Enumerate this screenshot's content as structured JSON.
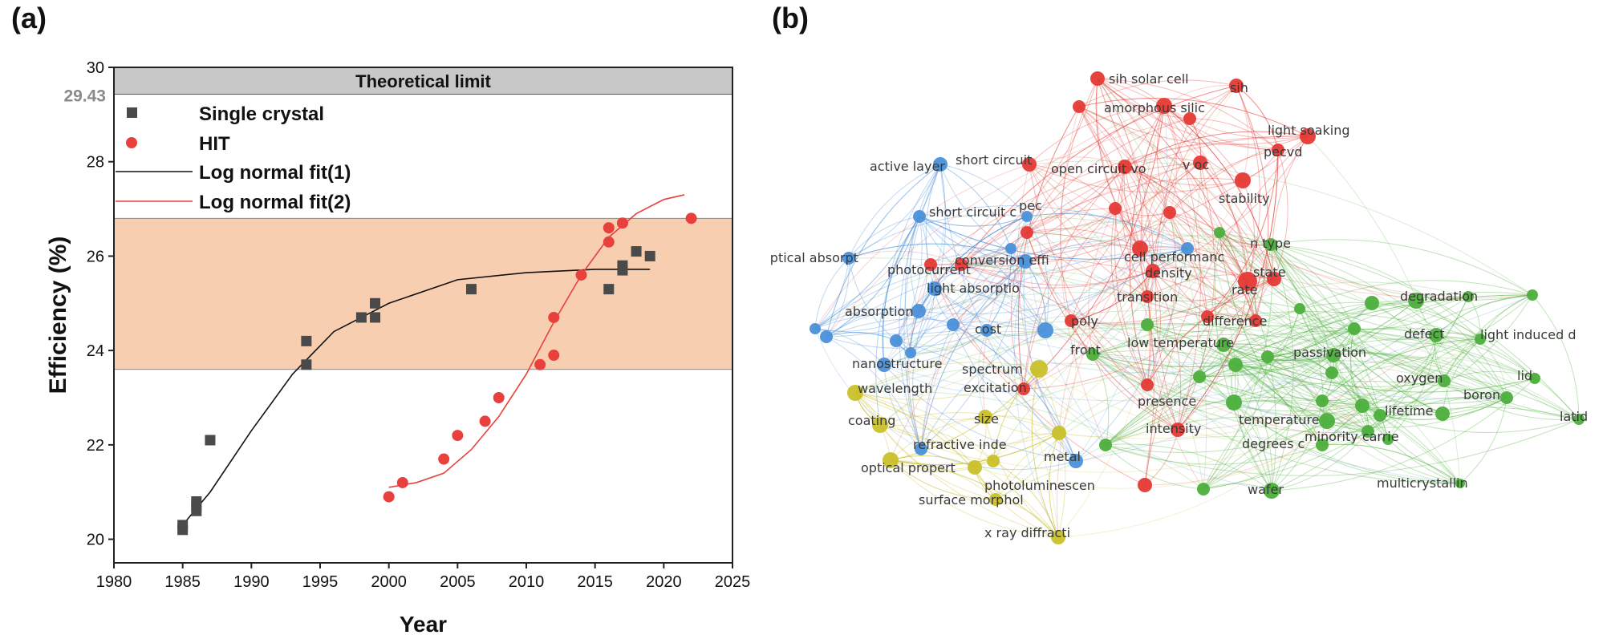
{
  "panels": {
    "a": "(a)",
    "b": "(b)"
  },
  "chart_data": [
    {
      "type": "scatter",
      "xlabel": "Year",
      "ylabel": "Efficiency (%)",
      "xlim": [
        1980,
        2025
      ],
      "ylim": [
        19.5,
        30
      ],
      "x_ticks": [
        1980,
        1985,
        1990,
        1995,
        2000,
        2005,
        2010,
        2015,
        2020,
        2025
      ],
      "y_ticks": [
        20,
        22,
        24,
        26,
        28,
        30
      ],
      "extra_tick": "29.43",
      "bands": [
        {
          "label": "Theoretical limit",
          "from": 29.43,
          "to": 30,
          "color": "#c8c8c8"
        },
        {
          "label": "",
          "from": 23.6,
          "to": 26.8,
          "color": "#f7cfb0"
        }
      ],
      "legend": {
        "placement": "top-left",
        "entries": [
          "Single crystal",
          "HIT",
          "Log normal fit(1)",
          "Log normal fit(2)"
        ]
      },
      "series": [
        {
          "name": "Single crystal",
          "marker": "square",
          "color": "#4a4a4a",
          "points": [
            [
              1985,
              20.2
            ],
            [
              1985,
              20.3
            ],
            [
              1986,
              20.6
            ],
            [
              1986,
              20.7
            ],
            [
              1986,
              20.8
            ],
            [
              1987,
              22.1
            ],
            [
              1994,
              23.7
            ],
            [
              1994,
              24.2
            ],
            [
              1998,
              24.7
            ],
            [
              1999,
              24.7
            ],
            [
              1999,
              25.0
            ],
            [
              2006,
              25.3
            ],
            [
              2016,
              25.3
            ],
            [
              2017,
              25.7
            ],
            [
              2017,
              25.8
            ],
            [
              2018,
              26.1
            ],
            [
              2019,
              26.0
            ]
          ]
        },
        {
          "name": "HIT",
          "marker": "circle",
          "color": "#e8403c",
          "points": [
            [
              2000,
              20.9
            ],
            [
              2001,
              21.2
            ],
            [
              2004,
              21.7
            ],
            [
              2005,
              22.2
            ],
            [
              2007,
              22.5
            ],
            [
              2008,
              23.0
            ],
            [
              2011,
              23.7
            ],
            [
              2012,
              23.9
            ],
            [
              2012,
              24.7
            ],
            [
              2014,
              25.6
            ],
            [
              2016,
              26.3
            ],
            [
              2016,
              26.6
            ],
            [
              2017,
              26.7
            ],
            [
              2022,
              26.8
            ]
          ]
        },
        {
          "name": "Log normal fit(1)",
          "type": "line",
          "color": "#111111",
          "points": [
            [
              1985,
              20.3
            ],
            [
              1987,
              21.0
            ],
            [
              1990,
              22.3
            ],
            [
              1993,
              23.5
            ],
            [
              1996,
              24.4
            ],
            [
              2000,
              25.0
            ],
            [
              2005,
              25.5
            ],
            [
              2010,
              25.65
            ],
            [
              2015,
              25.72
            ],
            [
              2019,
              25.72
            ]
          ]
        },
        {
          "name": "Log normal fit(2)",
          "type": "line",
          "color": "#e8403c",
          "points": [
            [
              2000,
              21.1
            ],
            [
              2002,
              21.2
            ],
            [
              2004,
              21.4
            ],
            [
              2006,
              21.9
            ],
            [
              2008,
              22.6
            ],
            [
              2010,
              23.5
            ],
            [
              2012,
              24.6
            ],
            [
              2014,
              25.6
            ],
            [
              2016,
              26.4
            ],
            [
              2018,
              26.9
            ],
            [
              2020,
              27.2
            ],
            [
              2021.5,
              27.3
            ]
          ]
        }
      ]
    },
    {
      "type": "network",
      "clusters": {
        "red": "#e53935",
        "green": "#4caf3c",
        "blue": "#4a90d9",
        "yellow": "#c9c02a"
      },
      "labels": [
        "sih solar cell",
        "sih",
        "amorphous silic",
        "light soaking",
        "pecvd",
        "short circuit",
        "open circuit vo",
        "v oc",
        "stability",
        "active layer",
        "short circuit c",
        "pec",
        "photocurrent",
        "cell performanc",
        "n type",
        "optical absorpt",
        "conversion effi",
        "density",
        "state",
        "rate",
        "light absorptio",
        "transition",
        "degradation",
        "absorption",
        "difference",
        "poly",
        "cost",
        "defect",
        "light induced d",
        "low temperature",
        "front",
        "nanostructure",
        "spectrum",
        "passivation",
        "oxygen",
        "wavelength",
        "excitation",
        "presence",
        "boron",
        "lid",
        "coating",
        "size",
        "lifetime",
        "latid",
        "intensity",
        "temperature",
        "refractive inde",
        "degrees c",
        "minority carrie",
        "metal",
        "optical propert",
        "photoluminescen",
        "wafer",
        "multicrystallin",
        "surface morphol",
        "x ray diffracti"
      ]
    }
  ]
}
